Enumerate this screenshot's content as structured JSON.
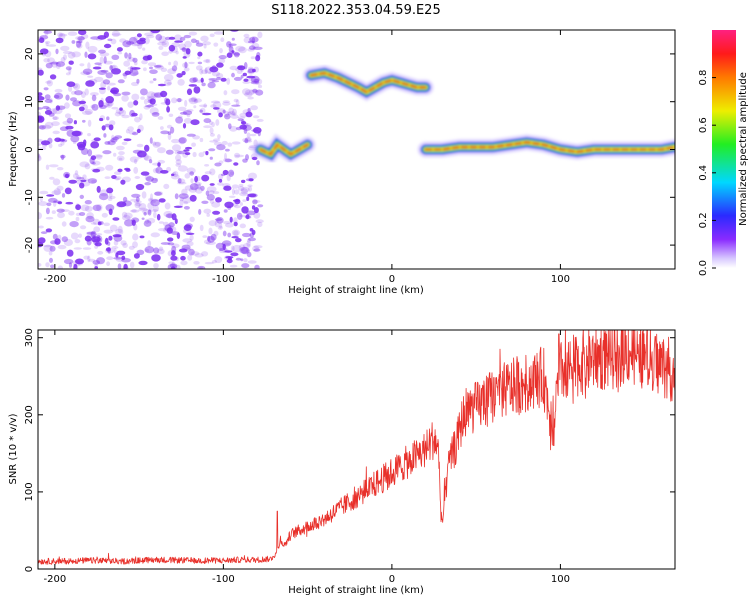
{
  "figure_title": "S118.2022.353.04.59.E25",
  "colors": {
    "trace": "#e8302a",
    "scatter": "#7a2cf0",
    "ridge_core": "#e8202a",
    "ridge_mid": "#22dd33",
    "ridge_edge": "#2244ee"
  },
  "chart_data": [
    {
      "type": "heatmap",
      "title": "S118.2022.353.04.59.E25",
      "xlabel": "Height of straight line (km)",
      "ylabel": "Frequency (Hz)",
      "xlim": [
        -210,
        168
      ],
      "ylim": [
        -25,
        25
      ],
      "x_ticks": [
        -200,
        -100,
        0,
        100
      ],
      "y_ticks": [
        -20,
        -10,
        0,
        10,
        20
      ],
      "x_tick_labels": [
        "-200",
        "-100",
        "0",
        "100"
      ],
      "y_tick_labels": [
        "-20",
        "-10",
        "0",
        "10",
        "20"
      ],
      "grid": false,
      "colormap": "rainbow (purple → blue → cyan → green → yellow → red → magenta)",
      "colorbar": {
        "label": "Normalized spectral amplitude",
        "range": [
          0,
          1
        ],
        "ticks": [
          0.0,
          0.2,
          0.4,
          0.6,
          0.8
        ],
        "tick_labels": [
          "0.0",
          "0.2",
          "0.4",
          "0.6",
          "0.8"
        ]
      },
      "noise_region_x": [
        -210,
        -78
      ],
      "ridges": [
        {
          "x": [
            -78,
            -72,
            -68,
            -64,
            -60,
            -55,
            -50
          ],
          "y": [
            0,
            -1,
            1,
            0,
            -1,
            0,
            1
          ]
        },
        {
          "x": [
            -48,
            -40,
            -32,
            -26,
            -20,
            -15,
            -10,
            -5,
            0,
            5,
            10,
            15,
            20
          ],
          "y": [
            15.5,
            16,
            15,
            14,
            13,
            12,
            13,
            14,
            14.5,
            14,
            13.5,
            13,
            13
          ]
        },
        {
          "x": [
            20,
            30,
            40,
            50,
            60,
            70,
            80,
            90,
            100,
            110,
            120,
            130,
            140,
            150,
            160,
            168
          ],
          "y": [
            0,
            0,
            0.5,
            0.5,
            0.5,
            1,
            1.5,
            1,
            0,
            -0.5,
            0,
            0,
            0,
            0,
            0,
            0.5
          ]
        }
      ]
    },
    {
      "type": "line",
      "title": "",
      "xlabel": "Height of straight line (km)",
      "ylabel": "SNR (10 * v/v)",
      "xlim": [
        -210,
        168
      ],
      "ylim": [
        0,
        310
      ],
      "x_ticks": [
        -200,
        -100,
        0,
        100
      ],
      "y_ticks": [
        0,
        100,
        200,
        300
      ],
      "x_tick_labels": [
        "-200",
        "-100",
        "0",
        "100"
      ],
      "y_tick_labels": [
        "0",
        "100",
        "200",
        "300"
      ],
      "grid": false,
      "series": [
        {
          "x": [
            -210,
            -200,
            -180,
            -160,
            -140,
            -120,
            -100,
            -90,
            -80,
            -72,
            -68,
            -66,
            -64,
            -60,
            -50,
            -40,
            -30,
            -20,
            -10,
            0,
            10,
            20,
            25,
            27,
            28,
            29,
            30,
            32,
            34,
            38,
            42,
            44,
            50,
            60,
            70,
            80,
            90,
            95,
            100,
            110,
            120,
            130,
            140,
            150,
            160,
            168
          ],
          "y": [
            10,
            10,
            11,
            10,
            12,
            11,
            11,
            12,
            12,
            13,
            22,
            40,
            30,
            45,
            55,
            65,
            80,
            95,
            110,
            125,
            140,
            155,
            170,
            160,
            140,
            75,
            60,
            100,
            140,
            160,
            195,
            205,
            210,
            225,
            235,
            240,
            250,
            185,
            255,
            265,
            275,
            275,
            285,
            275,
            265,
            255
          ],
          "peaks": [
            [
              99,
              305
            ],
            [
              -68,
              75
            ],
            [
              96,
              160
            ]
          ]
        }
      ]
    }
  ]
}
